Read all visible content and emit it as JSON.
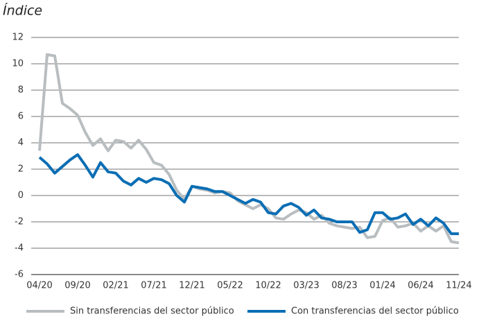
{
  "chart_data": {
    "type": "line",
    "title": "Índice",
    "categories": [
      "04/20",
      null,
      null,
      null,
      null,
      "09/20",
      null,
      null,
      null,
      null,
      "02/21",
      null,
      null,
      null,
      null,
      "07/21",
      null,
      null,
      null,
      null,
      "12/21",
      null,
      null,
      null,
      null,
      "05/22",
      null,
      null,
      null,
      null,
      "10/22",
      null,
      null,
      null,
      null,
      "03/23",
      null,
      null,
      null,
      null,
      "08/23",
      null,
      null,
      null,
      null,
      "01/24",
      null,
      null,
      null,
      null,
      "06/24",
      null,
      null,
      null,
      null,
      "11/24"
    ],
    "series": [
      {
        "name": "Sin transferencias del sector público",
        "color": "#b8bdc0",
        "values": [
          3.4,
          10.7,
          10.6,
          7.0,
          6.6,
          6.1,
          4.8,
          3.8,
          4.3,
          3.4,
          4.2,
          4.1,
          3.6,
          4.2,
          3.5,
          2.5,
          2.3,
          1.6,
          0.4,
          -0.3,
          0.7,
          0.5,
          0.4,
          0.2,
          0.3,
          0.2,
          -0.4,
          -0.7,
          -1.0,
          -0.7,
          -1.0,
          -1.7,
          -1.8,
          -1.4,
          -1.1,
          -1.3,
          -1.8,
          -1.5,
          -2.1,
          -2.3,
          -2.4,
          -2.5,
          -2.4,
          -3.2,
          -3.1,
          -1.9,
          -1.7,
          -2.4,
          -2.3,
          -2.1,
          -2.7,
          -2.3,
          -2.7,
          -2.3,
          -3.5,
          -3.6
        ]
      },
      {
        "name": "Con transferencias del sector público",
        "color": "#0a6eb4",
        "values": [
          2.9,
          2.4,
          1.7,
          2.2,
          2.7,
          3.1,
          2.3,
          1.4,
          2.5,
          1.8,
          1.7,
          1.1,
          0.8,
          1.3,
          1.0,
          1.3,
          1.2,
          0.9,
          0.0,
          -0.5,
          0.7,
          0.6,
          0.5,
          0.3,
          0.3,
          0.0,
          -0.3,
          -0.6,
          -0.3,
          -0.5,
          -1.3,
          -1.4,
          -0.8,
          -0.6,
          -0.9,
          -1.5,
          -1.1,
          -1.7,
          -1.8,
          -2.0,
          -2.0,
          -2.0,
          -2.8,
          -2.6,
          -1.3,
          -1.3,
          -1.8,
          -1.7,
          -1.4,
          -2.2,
          -1.8,
          -2.3,
          -1.7,
          -2.1,
          -2.9,
          -2.9
        ]
      }
    ],
    "ylim": [
      -6,
      12
    ],
    "yticks": [
      -6,
      -4,
      -2,
      0,
      2,
      4,
      6,
      8,
      10,
      12
    ],
    "grid": true,
    "legend": "bottom"
  }
}
